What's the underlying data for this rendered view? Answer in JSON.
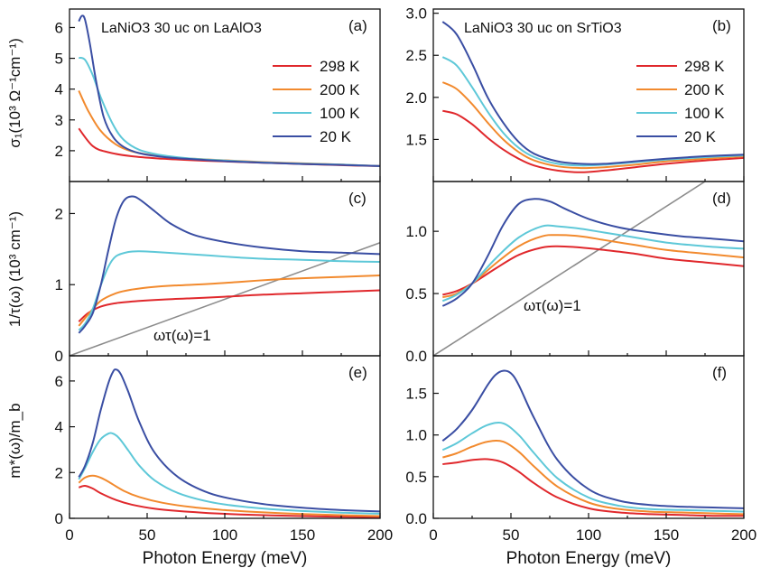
{
  "figure": {
    "xlabel": "Photon Energy (meV)",
    "ylabels": {
      "top": "σ₁(10³ Ω⁻¹cm⁻¹)",
      "middle": "1/τ(ω) (10³ cm⁻¹)",
      "bottom": "m*(ω)/m_b"
    },
    "x_ticks": [
      "0",
      "50",
      "100",
      "150",
      "200"
    ],
    "colors": {
      "298 K": "#e0282c",
      "200 K": "#f28a2e",
      "100 K": "#5ec8d8",
      "20 K": "#3a4ea3",
      "reference": "#8c8c8c"
    }
  },
  "chart_data": [
    {
      "panel": "(a)",
      "type": "line",
      "title": "LaNiO3 30 uc on LaAlO3",
      "xlim": [
        0,
        200
      ],
      "ylim": [
        1,
        6.6
      ],
      "yticks": [
        2,
        3,
        4,
        5,
        6
      ],
      "legend": {
        "placement": "top-right",
        "entries": [
          "298 K",
          "200 K",
          "100 K",
          "20 K"
        ]
      },
      "series": [
        {
          "name": "298 K",
          "x": [
            6,
            15,
            25,
            40,
            60,
            80,
            100,
            125,
            150,
            175,
            200
          ],
          "values": [
            2.72,
            2.15,
            1.95,
            1.82,
            1.74,
            1.69,
            1.65,
            1.61,
            1.57,
            1.53,
            1.5
          ]
        },
        {
          "name": "200 K",
          "x": [
            6,
            12,
            20,
            30,
            40,
            55,
            70,
            100,
            125,
            150,
            175,
            200
          ],
          "values": [
            3.95,
            3.3,
            2.65,
            2.2,
            1.98,
            1.84,
            1.77,
            1.69,
            1.63,
            1.59,
            1.55,
            1.5
          ]
        },
        {
          "name": "100 K",
          "x": [
            6,
            10,
            15,
            20,
            28,
            35,
            45,
            60,
            80,
            100,
            125,
            150,
            175,
            200
          ],
          "values": [
            5.02,
            4.95,
            4.45,
            3.75,
            2.85,
            2.35,
            2.03,
            1.85,
            1.74,
            1.68,
            1.62,
            1.58,
            1.55,
            1.5
          ]
        },
        {
          "name": "20 K",
          "x": [
            6,
            8,
            10,
            13,
            17,
            22,
            28,
            35,
            45,
            60,
            80,
            100,
            125,
            150,
            175,
            200
          ],
          "values": [
            6.2,
            6.38,
            6.25,
            5.5,
            4.3,
            3.1,
            2.45,
            2.12,
            1.92,
            1.8,
            1.72,
            1.66,
            1.61,
            1.57,
            1.54,
            1.5
          ]
        }
      ]
    },
    {
      "panel": "(b)",
      "type": "line",
      "title": "LaNiO3 30 uc on SrTiO3",
      "xlim": [
        0,
        200
      ],
      "ylim": [
        1.0,
        3.05
      ],
      "yticks": [
        1.5,
        2.0,
        2.5,
        3.0
      ],
      "legend": {
        "placement": "top-right",
        "entries": [
          "298 K",
          "200 K",
          "100 K",
          "20 K"
        ]
      },
      "series": [
        {
          "name": "298 K",
          "x": [
            6,
            15,
            25,
            35,
            45,
            55,
            65,
            80,
            95,
            110,
            130,
            150,
            175,
            200
          ],
          "values": [
            1.84,
            1.8,
            1.68,
            1.52,
            1.38,
            1.27,
            1.19,
            1.13,
            1.11,
            1.13,
            1.17,
            1.21,
            1.25,
            1.28
          ]
        },
        {
          "name": "200 K",
          "x": [
            6,
            15,
            25,
            35,
            45,
            55,
            65,
            80,
            95,
            110,
            130,
            150,
            175,
            200
          ],
          "values": [
            2.18,
            2.1,
            1.92,
            1.7,
            1.5,
            1.35,
            1.25,
            1.18,
            1.16,
            1.17,
            1.2,
            1.24,
            1.27,
            1.3
          ]
        },
        {
          "name": "100 K",
          "x": [
            6,
            15,
            25,
            35,
            45,
            55,
            65,
            80,
            95,
            110,
            130,
            150,
            175,
            200
          ],
          "values": [
            2.48,
            2.38,
            2.12,
            1.83,
            1.58,
            1.4,
            1.29,
            1.21,
            1.19,
            1.2,
            1.23,
            1.26,
            1.29,
            1.31
          ]
        },
        {
          "name": "20 K",
          "x": [
            6,
            15,
            25,
            35,
            45,
            55,
            65,
            80,
            95,
            110,
            130,
            150,
            175,
            200
          ],
          "values": [
            2.9,
            2.75,
            2.4,
            2.0,
            1.7,
            1.47,
            1.33,
            1.24,
            1.21,
            1.21,
            1.24,
            1.27,
            1.3,
            1.32
          ]
        }
      ]
    },
    {
      "panel": "(c)",
      "type": "line",
      "xlim": [
        0,
        200
      ],
      "ylim": [
        0,
        2.45
      ],
      "yticks": [
        0,
        1,
        2
      ],
      "annotation": "ωτ(ω)=1",
      "reference_line": {
        "x": [
          0,
          200
        ],
        "values": [
          0,
          1.59
        ]
      },
      "series": [
        {
          "name": "298 K",
          "x": [
            6,
            12,
            20,
            30,
            45,
            60,
            80,
            100,
            125,
            150,
            175,
            200
          ],
          "values": [
            0.48,
            0.6,
            0.69,
            0.74,
            0.77,
            0.79,
            0.81,
            0.83,
            0.86,
            0.88,
            0.9,
            0.92
          ]
        },
        {
          "name": "200 K",
          "x": [
            6,
            12,
            20,
            30,
            40,
            55,
            70,
            90,
            110,
            130,
            150,
            175,
            200
          ],
          "values": [
            0.42,
            0.58,
            0.77,
            0.88,
            0.93,
            0.97,
            0.99,
            1.01,
            1.04,
            1.07,
            1.09,
            1.11,
            1.13
          ]
        },
        {
          "name": "100 K",
          "x": [
            6,
            10,
            15,
            20,
            25,
            30,
            38,
            45,
            55,
            70,
            90,
            110,
            130,
            150,
            175,
            200
          ],
          "values": [
            0.36,
            0.45,
            0.66,
            0.98,
            1.25,
            1.4,
            1.46,
            1.47,
            1.46,
            1.44,
            1.41,
            1.38,
            1.36,
            1.35,
            1.33,
            1.32
          ]
        },
        {
          "name": "20 K",
          "x": [
            6,
            10,
            15,
            20,
            25,
            30,
            35,
            40,
            45,
            55,
            65,
            80,
            100,
            125,
            150,
            175,
            200
          ],
          "values": [
            0.32,
            0.42,
            0.6,
            0.98,
            1.48,
            1.93,
            2.18,
            2.24,
            2.2,
            2.03,
            1.86,
            1.7,
            1.6,
            1.52,
            1.47,
            1.45,
            1.43
          ]
        }
      ]
    },
    {
      "panel": "(d)",
      "type": "line",
      "xlim": [
        0,
        200
      ],
      "ylim": [
        0,
        1.4
      ],
      "yticks": [
        0.0,
        0.5,
        1.0
      ],
      "annotation": "ωτ(ω)=1",
      "reference_line": {
        "x": [
          0,
          175
        ],
        "values": [
          0,
          1.4
        ]
      },
      "series": [
        {
          "name": "298 K",
          "x": [
            6,
            15,
            25,
            40,
            55,
            70,
            80,
            95,
            110,
            130,
            150,
            175,
            200
          ],
          "values": [
            0.49,
            0.52,
            0.58,
            0.7,
            0.81,
            0.87,
            0.88,
            0.87,
            0.85,
            0.82,
            0.78,
            0.75,
            0.72
          ]
        },
        {
          "name": "200 K",
          "x": [
            6,
            15,
            25,
            40,
            55,
            70,
            80,
            95,
            110,
            130,
            150,
            175,
            200
          ],
          "values": [
            0.47,
            0.5,
            0.58,
            0.74,
            0.88,
            0.96,
            0.97,
            0.96,
            0.93,
            0.89,
            0.85,
            0.82,
            0.79
          ]
        },
        {
          "name": "100 K",
          "x": [
            6,
            15,
            25,
            40,
            55,
            70,
            80,
            95,
            110,
            130,
            150,
            175,
            200
          ],
          "values": [
            0.44,
            0.49,
            0.58,
            0.78,
            0.95,
            1.04,
            1.04,
            1.02,
            0.99,
            0.95,
            0.91,
            0.88,
            0.86
          ]
        },
        {
          "name": "20 K",
          "x": [
            6,
            15,
            25,
            35,
            45,
            55,
            65,
            75,
            85,
            100,
            120,
            140,
            160,
            180,
            200
          ],
          "values": [
            0.4,
            0.46,
            0.58,
            0.8,
            1.05,
            1.22,
            1.26,
            1.24,
            1.18,
            1.1,
            1.03,
            0.99,
            0.96,
            0.94,
            0.92
          ]
        }
      ]
    },
    {
      "panel": "(e)",
      "type": "line",
      "xlim": [
        0,
        200
      ],
      "ylim": [
        0,
        7.1
      ],
      "yticks": [
        0,
        2,
        4,
        6
      ],
      "series": [
        {
          "name": "298 K",
          "x": [
            6,
            10,
            15,
            20,
            30,
            40,
            55,
            70,
            90,
            110,
            130,
            150,
            175,
            200
          ],
          "values": [
            1.35,
            1.42,
            1.3,
            1.1,
            0.8,
            0.6,
            0.42,
            0.32,
            0.23,
            0.17,
            0.13,
            0.1,
            0.07,
            0.05
          ]
        },
        {
          "name": "200 K",
          "x": [
            6,
            10,
            15,
            20,
            25,
            35,
            45,
            60,
            80,
            100,
            125,
            150,
            175,
            200
          ],
          "values": [
            1.55,
            1.78,
            1.86,
            1.78,
            1.6,
            1.2,
            0.93,
            0.68,
            0.48,
            0.36,
            0.26,
            0.19,
            0.14,
            0.1
          ]
        },
        {
          "name": "100 K",
          "x": [
            6,
            10,
            15,
            20,
            25,
            28,
            32,
            38,
            45,
            55,
            70,
            90,
            110,
            130,
            150,
            175,
            200
          ],
          "values": [
            1.7,
            2.2,
            2.9,
            3.45,
            3.7,
            3.7,
            3.5,
            2.95,
            2.3,
            1.65,
            1.1,
            0.72,
            0.52,
            0.4,
            0.32,
            0.25,
            0.2
          ]
        },
        {
          "name": "20 K",
          "x": [
            6,
            10,
            15,
            20,
            25,
            28,
            30,
            33,
            38,
            45,
            55,
            70,
            90,
            110,
            130,
            150,
            175,
            200
          ],
          "values": [
            1.8,
            2.3,
            3.3,
            4.7,
            5.9,
            6.4,
            6.5,
            6.3,
            5.5,
            4.2,
            2.85,
            1.8,
            1.1,
            0.78,
            0.58,
            0.46,
            0.36,
            0.3
          ]
        }
      ]
    },
    {
      "panel": "(f)",
      "type": "line",
      "xlim": [
        0,
        200
      ],
      "ylim": [
        0,
        1.95
      ],
      "yticks": [
        0.0,
        0.5,
        1.0,
        1.5
      ],
      "series": [
        {
          "name": "298 K",
          "x": [
            6,
            15,
            25,
            35,
            45,
            55,
            65,
            80,
            100,
            120,
            140,
            160,
            180,
            200
          ],
          "values": [
            0.65,
            0.67,
            0.7,
            0.71,
            0.67,
            0.56,
            0.42,
            0.25,
            0.12,
            0.07,
            0.05,
            0.04,
            0.03,
            0.03
          ]
        },
        {
          "name": "200 K",
          "x": [
            6,
            15,
            25,
            35,
            45,
            55,
            65,
            80,
            100,
            120,
            140,
            160,
            180,
            200
          ],
          "values": [
            0.73,
            0.78,
            0.86,
            0.92,
            0.92,
            0.8,
            0.62,
            0.38,
            0.19,
            0.11,
            0.08,
            0.07,
            0.06,
            0.05
          ]
        },
        {
          "name": "100 K",
          "x": [
            6,
            15,
            25,
            35,
            45,
            55,
            65,
            80,
            100,
            120,
            140,
            160,
            180,
            200
          ],
          "values": [
            0.82,
            0.9,
            1.02,
            1.12,
            1.14,
            1.0,
            0.78,
            0.48,
            0.25,
            0.15,
            0.11,
            0.1,
            0.09,
            0.08
          ]
        },
        {
          "name": "20 K",
          "x": [
            6,
            15,
            25,
            35,
            40,
            45,
            50,
            55,
            65,
            80,
            100,
            120,
            140,
            160,
            180,
            200
          ],
          "values": [
            0.93,
            1.07,
            1.3,
            1.6,
            1.72,
            1.77,
            1.74,
            1.6,
            1.2,
            0.7,
            0.35,
            0.21,
            0.16,
            0.14,
            0.13,
            0.12
          ]
        }
      ]
    }
  ]
}
